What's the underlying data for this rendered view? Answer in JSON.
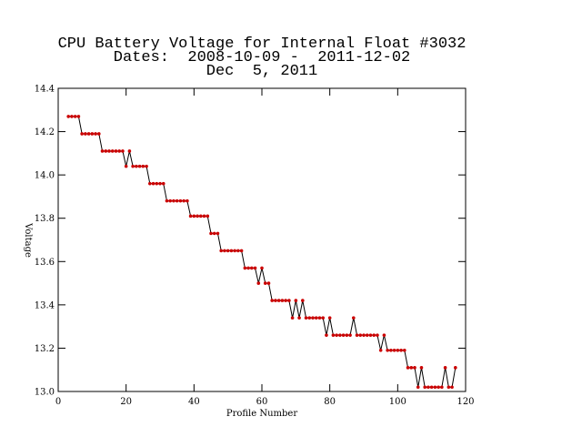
{
  "chart_data": {
    "type": "line",
    "title": [
      "CPU Battery Voltage for Internal Float #3032",
      "Dates:  2008-10-09 -  2011-12-02",
      "Dec  5, 2011"
    ],
    "xlabel": "Profile Number",
    "ylabel": "Voltage",
    "x": [
      3,
      4,
      5,
      6,
      7,
      8,
      9,
      10,
      11,
      12,
      13,
      14,
      15,
      16,
      17,
      18,
      19,
      20,
      21,
      22,
      23,
      24,
      25,
      26,
      27,
      28,
      29,
      30,
      31,
      32,
      33,
      34,
      35,
      36,
      37,
      38,
      39,
      40,
      41,
      42,
      43,
      44,
      45,
      46,
      47,
      48,
      49,
      50,
      51,
      52,
      53,
      54,
      55,
      56,
      57,
      58,
      59,
      60,
      61,
      62,
      63,
      64,
      65,
      66,
      67,
      68,
      69,
      70,
      71,
      72,
      73,
      74,
      75,
      76,
      77,
      78,
      79,
      80,
      81,
      82,
      83,
      84,
      85,
      86,
      87,
      88,
      89,
      90,
      91,
      92,
      93,
      94,
      95,
      96,
      97,
      98,
      99,
      100,
      101,
      102,
      103,
      104,
      105,
      106,
      107,
      108,
      109,
      110,
      111,
      112,
      113,
      114,
      115,
      116,
      117
    ],
    "series": [
      {
        "color": "#cc0000",
        "line_color": "#000000",
        "values": [
          14.27,
          14.27,
          14.27,
          14.27,
          14.19,
          14.19,
          14.19,
          14.19,
          14.19,
          14.19,
          14.11,
          14.11,
          14.11,
          14.11,
          14.11,
          14.11,
          14.11,
          14.04,
          14.11,
          14.04,
          14.04,
          14.04,
          14.04,
          14.04,
          13.96,
          13.96,
          13.96,
          13.96,
          13.96,
          13.88,
          13.88,
          13.88,
          13.88,
          13.88,
          13.88,
          13.88,
          13.81,
          13.81,
          13.81,
          13.81,
          13.81,
          13.81,
          13.73,
          13.73,
          13.73,
          13.65,
          13.65,
          13.65,
          13.65,
          13.65,
          13.65,
          13.65,
          13.57,
          13.57,
          13.57,
          13.57,
          13.5,
          13.57,
          13.5,
          13.5,
          13.42,
          13.42,
          13.42,
          13.42,
          13.42,
          13.42,
          13.34,
          13.42,
          13.34,
          13.42,
          13.34,
          13.34,
          13.34,
          13.34,
          13.34,
          13.34,
          13.26,
          13.34,
          13.26,
          13.26,
          13.26,
          13.26,
          13.26,
          13.26,
          13.34,
          13.26,
          13.26,
          13.26,
          13.26,
          13.26,
          13.26,
          13.26,
          13.19,
          13.26,
          13.19,
          13.19,
          13.19,
          13.19,
          13.19,
          13.19,
          13.11,
          13.11,
          13.11,
          13.02,
          13.11,
          13.02,
          13.02,
          13.02,
          13.02,
          13.02,
          13.02,
          13.11,
          13.02,
          13.02,
          13.11
        ]
      }
    ],
    "xlim": [
      0,
      120
    ],
    "xticks": [
      0,
      20,
      40,
      60,
      80,
      100,
      120
    ],
    "ylim": [
      13.0,
      14.4
    ],
    "yticks": [
      {
        "value": 13.0,
        "label": "13.0"
      },
      13.2,
      13.4,
      13.6,
      13.8,
      {
        "value": 14.0,
        "label": "14.0"
      },
      14.2,
      14.4
    ]
  }
}
